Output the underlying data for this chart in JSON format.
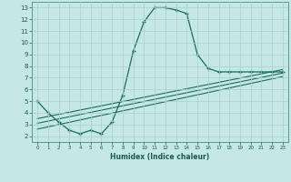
{
  "title": "",
  "xlabel": "Humidex (Indice chaleur)",
  "ylabel": "",
  "bg_color": "#c5e8e4",
  "grid_color": "#aad0cc",
  "line_color": "#1a6b5a",
  "xlim": [
    -0.5,
    23.5
  ],
  "ylim": [
    1.5,
    13.5
  ],
  "yticks": [
    2,
    3,
    4,
    5,
    6,
    7,
    8,
    9,
    10,
    11,
    12,
    13
  ],
  "xticks": [
    0,
    1,
    2,
    3,
    4,
    5,
    6,
    7,
    8,
    9,
    10,
    11,
    12,
    13,
    14,
    15,
    16,
    17,
    18,
    19,
    20,
    21,
    22,
    23
  ],
  "xtick_labels": [
    "0",
    "1",
    "2",
    "3",
    "4",
    "5",
    "6",
    "7",
    "8",
    "9",
    "10",
    "11",
    "12",
    "13",
    "14",
    "15",
    "16",
    "17",
    "18",
    "19",
    "20",
    "21",
    "22",
    "23"
  ],
  "series1_x": [
    0,
    1,
    2,
    3,
    4,
    5,
    6,
    7,
    8,
    9,
    10,
    11,
    12,
    13,
    14,
    15,
    16,
    17,
    18,
    19,
    20,
    21,
    22,
    23
  ],
  "series1_y": [
    5.0,
    4.0,
    3.2,
    2.5,
    2.2,
    2.5,
    2.2,
    3.2,
    5.5,
    9.3,
    11.8,
    13.0,
    13.0,
    12.8,
    12.5,
    9.0,
    7.8,
    7.5,
    7.5,
    7.5,
    7.5,
    7.5,
    7.5,
    7.5
  ],
  "series2_x": [
    0,
    23
  ],
  "series2_y": [
    3.5,
    7.7
  ],
  "series3_x": [
    0,
    23
  ],
  "series3_y": [
    3.1,
    7.4
  ],
  "series4_x": [
    0,
    23
  ],
  "series4_y": [
    2.6,
    7.1
  ]
}
